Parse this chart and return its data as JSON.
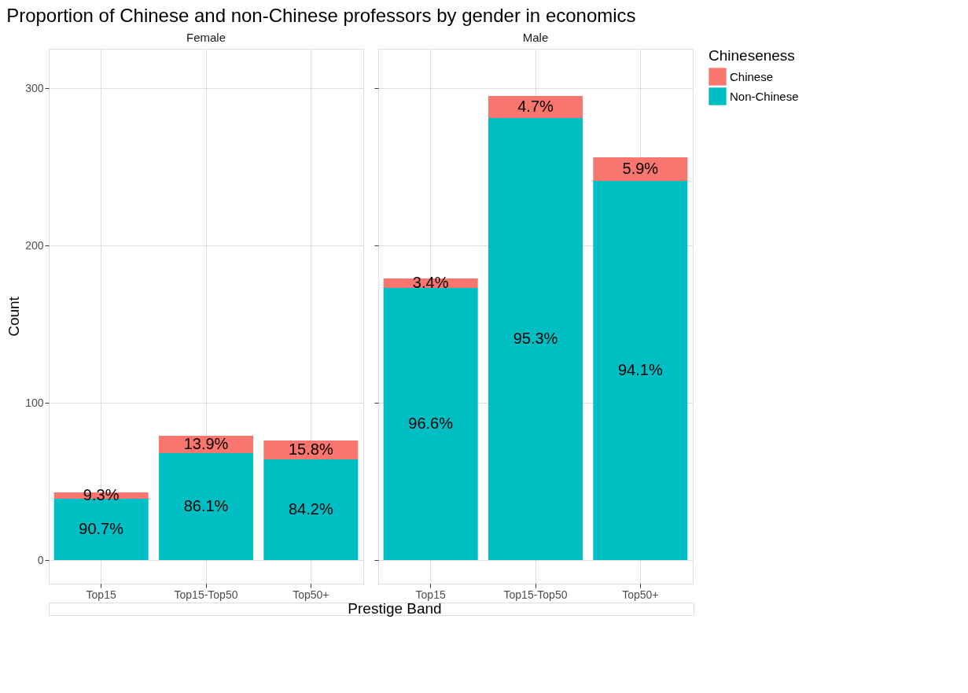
{
  "chart_data": [
    {
      "type": "bar",
      "title": "Proportion of Chinese and non-Chinese professors by gender in economics",
      "subtitle": "Female",
      "xlabel": "Prestige Band",
      "ylabel": "Count",
      "legend_title": "Chineseness",
      "legend": "right",
      "stacked": true,
      "grid": true,
      "categories": [
        "Top15",
        "Top15-Top50",
        "Top50+"
      ],
      "ylim": [
        -15,
        325
      ],
      "yticks": [
        0,
        100,
        200,
        300
      ],
      "series": [
        {
          "name": "Non-Chinese",
          "color": "#00bfc4",
          "values": [
            39,
            68,
            64
          ]
        },
        {
          "name": "Chinese",
          "color": "#f8766d",
          "values": [
            4,
            11,
            12
          ]
        }
      ],
      "annotations": [
        "90.7%",
        "86.1%",
        "84.2%",
        "9.3%",
        "13.9%",
        "15.8%"
      ]
    },
    {
      "type": "bar",
      "subtitle": "Male",
      "legend": "right",
      "stacked": true,
      "grid": true,
      "tick_labels": "x",
      "categories": [
        "Top15",
        "Top15-Top50",
        "Top50+"
      ],
      "ylim": [
        -15,
        325
      ],
      "yticks": [
        0,
        100,
        200,
        300
      ],
      "series": [
        {
          "name": "Non-Chinese",
          "color": "#00bfc4",
          "values": [
            173,
            281,
            241
          ]
        },
        {
          "name": "Chinese",
          "color": "#f8766d",
          "values": [
            6,
            14,
            15
          ]
        }
      ],
      "annotations": [
        "96.6%",
        "95.3%",
        "94.1%",
        "3.4%",
        "4.7%",
        "5.9%"
      ]
    }
  ]
}
